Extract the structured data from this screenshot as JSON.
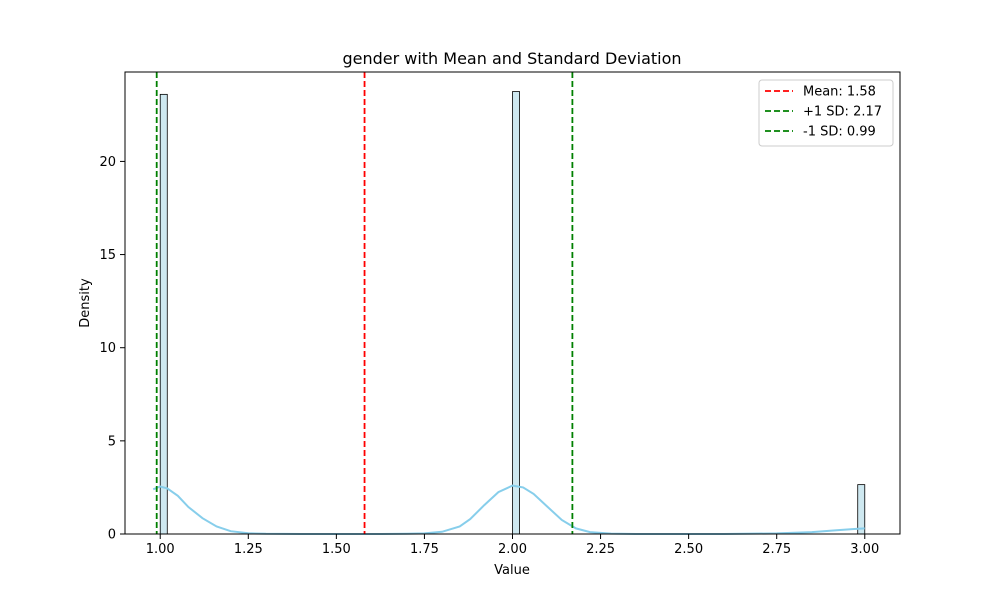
{
  "chart_data": {
    "type": "histogram",
    "title": "gender with Mean and Standard Deviation",
    "xlabel": "Value",
    "ylabel": "Density",
    "xlim": [
      0.9,
      3.1
    ],
    "ylim": [
      0,
      24.8
    ],
    "x_ticks": [
      1.0,
      1.25,
      1.5,
      1.75,
      2.0,
      2.25,
      2.5,
      2.75,
      3.0
    ],
    "x_tick_labels": [
      "1.00",
      "1.25",
      "1.50",
      "1.75",
      "2.00",
      "2.25",
      "2.50",
      "2.75",
      "3.00"
    ],
    "y_ticks": [
      0,
      5,
      10,
      15,
      20
    ],
    "y_tick_labels": [
      "0",
      "5",
      "10",
      "15",
      "20"
    ],
    "bins": [
      {
        "x0": 1.0,
        "x1": 1.02,
        "density": 23.6
      },
      {
        "x0": 2.0,
        "x1": 2.02,
        "density": 23.75
      },
      {
        "x0": 2.98,
        "x1": 3.0,
        "density": 2.65
      }
    ],
    "kde": [
      [
        0.98,
        2.4
      ],
      [
        1.0,
        2.55
      ],
      [
        1.02,
        2.45
      ],
      [
        1.05,
        2.05
      ],
      [
        1.08,
        1.45
      ],
      [
        1.12,
        0.85
      ],
      [
        1.16,
        0.4
      ],
      [
        1.2,
        0.15
      ],
      [
        1.25,
        0.04
      ],
      [
        1.3,
        0.01
      ],
      [
        1.4,
        0.0
      ],
      [
        1.6,
        0.0
      ],
      [
        1.7,
        0.01
      ],
      [
        1.75,
        0.03
      ],
      [
        1.8,
        0.12
      ],
      [
        1.85,
        0.4
      ],
      [
        1.88,
        0.8
      ],
      [
        1.92,
        1.55
      ],
      [
        1.96,
        2.25
      ],
      [
        2.0,
        2.6
      ],
      [
        2.03,
        2.5
      ],
      [
        2.06,
        2.15
      ],
      [
        2.1,
        1.45
      ],
      [
        2.14,
        0.75
      ],
      [
        2.18,
        0.3
      ],
      [
        2.22,
        0.1
      ],
      [
        2.28,
        0.02
      ],
      [
        2.35,
        0.0
      ],
      [
        2.6,
        0.0
      ],
      [
        2.75,
        0.03
      ],
      [
        2.85,
        0.1
      ],
      [
        2.92,
        0.2
      ],
      [
        2.97,
        0.27
      ],
      [
        3.0,
        0.3
      ]
    ],
    "reference_lines": [
      {
        "label": "Mean: 1.58",
        "x": 1.58,
        "color": "#ff0000"
      },
      {
        "label": "+1 SD: 2.17",
        "x": 2.17,
        "color": "#008000"
      },
      {
        "label": "-1 SD: 0.99",
        "x": 0.99,
        "color": "#008000"
      }
    ],
    "bar_fill": "#add8e6",
    "bar_edge": "#000000",
    "kde_color": "#87ceeb",
    "legend_position": "top-right",
    "grid": false
  }
}
